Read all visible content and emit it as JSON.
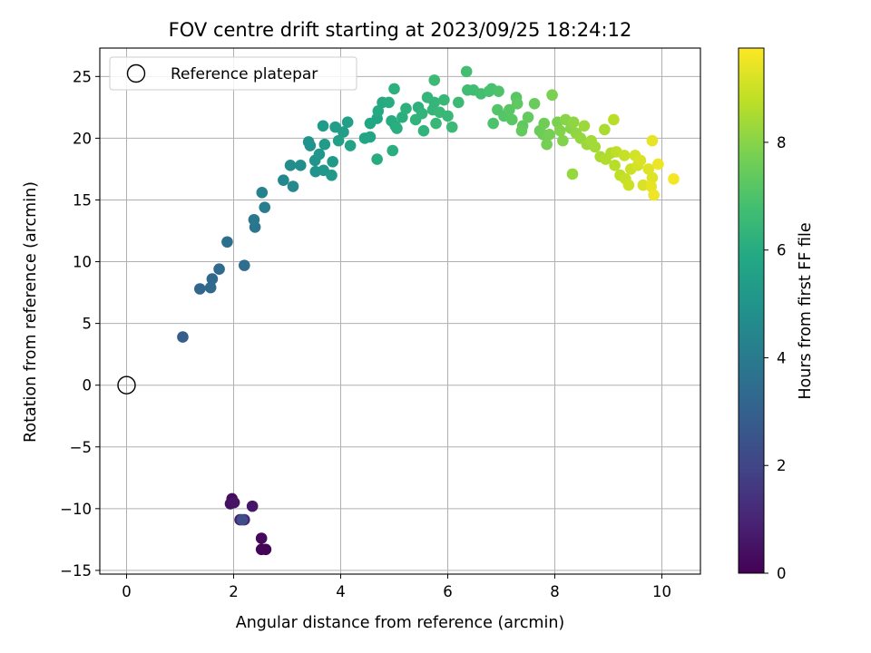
{
  "chart_data": {
    "type": "scatter",
    "title": "FOV centre drift starting at 2023/09/25 18:24:12",
    "xlabel": "Angular distance from reference (arcmin)",
    "ylabel": "Rotation from reference (arcmin)",
    "xlim": [
      -0.5,
      10.72
    ],
    "ylim": [
      -15.3,
      27.3
    ],
    "xticks": [
      0,
      2,
      4,
      6,
      8,
      10
    ],
    "yticks": [
      -15,
      -10,
      -5,
      0,
      5,
      10,
      15,
      20,
      25
    ],
    "xtick_labels": [
      "0",
      "2",
      "4",
      "6",
      "8",
      "10"
    ],
    "ytick_labels": [
      "−15",
      "−10",
      "−5",
      "0",
      "5",
      "10",
      "15",
      "20",
      "25"
    ],
    "grid": true,
    "legend": {
      "placement": "top-left",
      "entries": [
        "Reference platepar"
      ]
    },
    "reference_point": {
      "x": 0,
      "y": 0
    },
    "colorbar": {
      "label": "Hours from first FF file",
      "colormap": "viridis",
      "range": [
        0,
        9.75
      ],
      "ticks": [
        0,
        2,
        4,
        6,
        8
      ],
      "tick_labels": [
        "0",
        "2",
        "4",
        "6",
        "8"
      ]
    },
    "points": [
      [
        1.97,
        -9.2,
        0.3
      ],
      [
        1.94,
        -9.6,
        0.4
      ],
      [
        2.01,
        -9.5,
        0.5
      ],
      [
        2.35,
        -9.8,
        0.6
      ],
      [
        2.12,
        -10.9,
        0.8
      ],
      [
        2.2,
        -10.9,
        1.0
      ],
      [
        2.52,
        -12.4,
        0.2
      ],
      [
        2.52,
        -13.3,
        0.1
      ],
      [
        2.6,
        -13.3,
        0.1
      ],
      [
        2.16,
        -10.9,
        2.3
      ],
      [
        1.05,
        3.9,
        2.9
      ],
      [
        1.37,
        7.8,
        3.2
      ],
      [
        1.57,
        7.9,
        3.3
      ],
      [
        1.6,
        8.6,
        3.3
      ],
      [
        1.73,
        9.4,
        3.4
      ],
      [
        2.2,
        9.7,
        3.5
      ],
      [
        1.88,
        11.6,
        3.6
      ],
      [
        2.4,
        12.8,
        3.8
      ],
      [
        2.38,
        13.4,
        3.9
      ],
      [
        2.58,
        14.4,
        4.1
      ],
      [
        2.53,
        15.6,
        4.3
      ],
      [
        2.93,
        16.6,
        4.5
      ],
      [
        3.11,
        16.1,
        4.6
      ],
      [
        3.06,
        17.8,
        4.7
      ],
      [
        3.25,
        17.8,
        4.8
      ],
      [
        3.4,
        19.7,
        4.9
      ],
      [
        3.43,
        19.4,
        4.9
      ],
      [
        3.53,
        17.3,
        5.0
      ],
      [
        3.52,
        18.2,
        5.0
      ],
      [
        3.68,
        17.4,
        5.1
      ],
      [
        3.6,
        18.7,
        5.1
      ],
      [
        3.83,
        17.0,
        5.2
      ],
      [
        3.85,
        18.1,
        5.2
      ],
      [
        3.7,
        19.5,
        5.3
      ],
      [
        3.67,
        21.0,
        5.3
      ],
      [
        3.9,
        20.9,
        5.4
      ],
      [
        4.05,
        20.5,
        5.4
      ],
      [
        4.13,
        21.3,
        5.5
      ],
      [
        3.96,
        19.8,
        5.5
      ],
      [
        4.18,
        19.4,
        5.6
      ],
      [
        4.45,
        20.0,
        5.7
      ],
      [
        4.55,
        20.1,
        5.7
      ],
      [
        4.55,
        21.2,
        5.8
      ],
      [
        4.68,
        21.6,
        5.8
      ],
      [
        4.7,
        22.2,
        5.9
      ],
      [
        4.78,
        22.9,
        5.9
      ],
      [
        4.9,
        22.9,
        6.0
      ],
      [
        4.95,
        21.4,
        6.0
      ],
      [
        5.02,
        21.0,
        6.0
      ],
      [
        4.68,
        18.3,
        6.0
      ],
      [
        4.97,
        19.0,
        6.1
      ],
      [
        5.05,
        20.8,
        6.1
      ],
      [
        5.15,
        21.7,
        6.1
      ],
      [
        5.22,
        22.4,
        6.2
      ],
      [
        5.0,
        24.0,
        6.2
      ],
      [
        5.45,
        22.5,
        6.2
      ],
      [
        5.4,
        21.5,
        6.3
      ],
      [
        5.52,
        22.0,
        6.3
      ],
      [
        5.55,
        20.6,
        6.3
      ],
      [
        5.62,
        23.3,
        6.4
      ],
      [
        5.75,
        22.9,
        6.4
      ],
      [
        5.72,
        22.3,
        6.4
      ],
      [
        5.78,
        21.2,
        6.5
      ],
      [
        5.85,
        22.1,
        6.5
      ],
      [
        6.0,
        21.8,
        6.5
      ],
      [
        5.93,
        23.1,
        6.5
      ],
      [
        6.08,
        20.9,
        6.6
      ],
      [
        6.2,
        22.9,
        6.6
      ],
      [
        5.75,
        24.7,
        6.6
      ],
      [
        6.37,
        23.9,
        6.7
      ],
      [
        6.48,
        23.9,
        6.7
      ],
      [
        6.35,
        25.4,
        6.8
      ],
      [
        6.62,
        23.6,
        6.8
      ],
      [
        6.82,
        24.0,
        6.9
      ],
      [
        6.77,
        23.8,
        6.9
      ],
      [
        6.95,
        23.8,
        7.0
      ],
      [
        6.85,
        21.2,
        7.0
      ],
      [
        6.93,
        22.3,
        7.1
      ],
      [
        7.05,
        21.8,
        7.1
      ],
      [
        7.15,
        22.3,
        7.2
      ],
      [
        7.2,
        21.5,
        7.2
      ],
      [
        7.28,
        23.3,
        7.2
      ],
      [
        7.3,
        22.8,
        7.3
      ],
      [
        7.4,
        21.0,
        7.3
      ],
      [
        7.38,
        20.6,
        7.4
      ],
      [
        7.5,
        21.7,
        7.4
      ],
      [
        7.62,
        22.8,
        7.5
      ],
      [
        7.72,
        20.6,
        7.5
      ],
      [
        7.78,
        20.3,
        7.6
      ],
      [
        7.8,
        21.2,
        7.6
      ],
      [
        7.85,
        19.5,
        7.7
      ],
      [
        7.9,
        20.3,
        7.7
      ],
      [
        7.95,
        23.5,
        7.8
      ],
      [
        8.05,
        21.3,
        7.8
      ],
      [
        8.1,
        20.6,
        7.9
      ],
      [
        8.15,
        19.8,
        7.9
      ],
      [
        8.2,
        21.5,
        8.0
      ],
      [
        8.3,
        20.8,
        8.0
      ],
      [
        8.35,
        21.3,
        8.1
      ],
      [
        8.4,
        20.4,
        8.1
      ],
      [
        8.33,
        17.1,
        8.2
      ],
      [
        8.48,
        20.0,
        8.2
      ],
      [
        8.55,
        21.0,
        8.3
      ],
      [
        8.6,
        19.5,
        8.3
      ],
      [
        8.68,
        19.8,
        8.4
      ],
      [
        8.75,
        19.3,
        8.4
      ],
      [
        8.85,
        18.5,
        8.5
      ],
      [
        8.93,
        20.7,
        8.5
      ],
      [
        8.95,
        18.3,
        8.6
      ],
      [
        9.05,
        18.8,
        8.6
      ],
      [
        9.1,
        21.5,
        8.7
      ],
      [
        9.12,
        17.8,
        8.7
      ],
      [
        9.15,
        18.9,
        8.8
      ],
      [
        9.22,
        17.0,
        8.8
      ],
      [
        9.3,
        18.6,
        8.9
      ],
      [
        9.32,
        16.7,
        8.9
      ],
      [
        9.38,
        16.2,
        9.0
      ],
      [
        9.42,
        17.5,
        9.0
      ],
      [
        9.5,
        18.6,
        9.1
      ],
      [
        9.55,
        17.8,
        9.1
      ],
      [
        9.6,
        18.2,
        9.2
      ],
      [
        9.65,
        16.2,
        9.2
      ],
      [
        9.75,
        17.5,
        9.3
      ],
      [
        9.82,
        16.8,
        9.3
      ],
      [
        9.8,
        16.1,
        9.4
      ],
      [
        9.82,
        19.8,
        9.4
      ],
      [
        9.85,
        15.4,
        9.5
      ],
      [
        9.93,
        17.9,
        9.5
      ],
      [
        10.22,
        16.7,
        9.6
      ]
    ]
  }
}
